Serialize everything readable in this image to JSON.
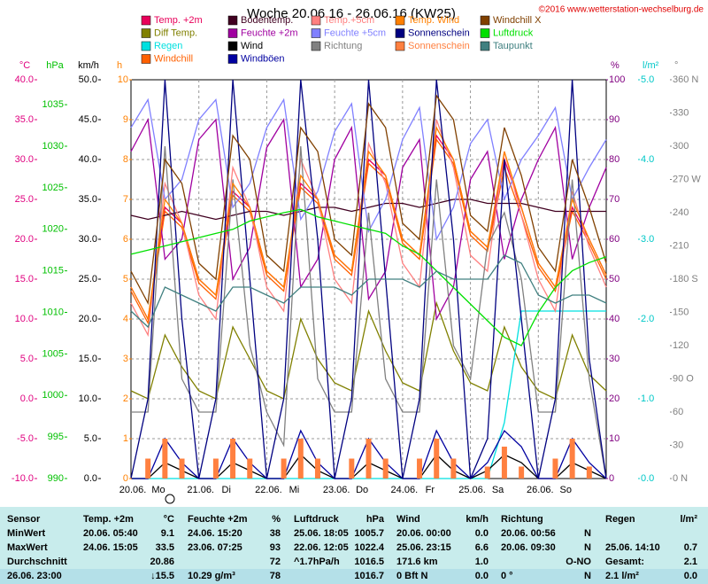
{
  "chart_data": {
    "type": "line",
    "title": "Woche 20.06.16 - 26.06.16 (KW25)",
    "copyright": "©2016 www.wetterstation-wechselburg.de",
    "xlim": [
      0,
      168
    ],
    "xticks": [
      {
        "value": 0,
        "label": "20.06."
      },
      {
        "value": 24,
        "label": "21.06."
      },
      {
        "value": 48,
        "label": "22.06."
      },
      {
        "value": 72,
        "label": "23.06."
      },
      {
        "value": 96,
        "label": "24.06."
      },
      {
        "value": 120,
        "label": "25.06."
      },
      {
        "value": 144,
        "label": "26.06."
      }
    ],
    "weekdays": [
      "Mo",
      "Di",
      "Mi",
      "Do",
      "Fr",
      "Sa",
      "So"
    ],
    "grid": true,
    "axes": {
      "temp": {
        "unit": "°C",
        "color": "#e0007f",
        "lim": [
          -10,
          40
        ],
        "ticks": [
          {
            "value": -10,
            "label": "-10.0"
          },
          {
            "value": -5,
            "label": "-5.0"
          },
          {
            "value": 0,
            "label": "0.0"
          },
          {
            "value": 5,
            "label": "5.0"
          },
          {
            "value": 10,
            "label": "10.0"
          },
          {
            "value": 15,
            "label": "15.0"
          },
          {
            "value": 20,
            "label": "20.0"
          },
          {
            "value": 25,
            "label": "25.0"
          },
          {
            "value": 30,
            "label": "30.0"
          },
          {
            "value": 35,
            "label": "35.0"
          },
          {
            "value": 40,
            "label": "40.0"
          }
        ]
      },
      "hpa": {
        "unit": "hPa",
        "color": "#00c000",
        "lim": [
          990,
          1038
        ],
        "ticks": [
          990,
          995,
          1000,
          1005,
          1010,
          1015,
          1020,
          1025,
          1030,
          1035
        ]
      },
      "kmh": {
        "unit": "km/h",
        "color": "#000000",
        "lim": [
          0,
          50
        ],
        "ticks": [
          {
            "value": 0,
            "label": "0.0"
          },
          {
            "value": 5,
            "label": "5.0"
          },
          {
            "value": 10,
            "label": "10.0"
          },
          {
            "value": 15,
            "label": "15.0"
          },
          {
            "value": 20,
            "label": "20.0"
          },
          {
            "value": 25,
            "label": "25.0"
          },
          {
            "value": 30,
            "label": "30.0"
          },
          {
            "value": 35,
            "label": "35.0"
          },
          {
            "value": 40,
            "label": "40.0"
          },
          {
            "value": 45,
            "label": "45.0"
          },
          {
            "value": 50,
            "label": "50.0"
          }
        ]
      },
      "h": {
        "unit": "h",
        "color": "#ff8000",
        "lim": [
          0,
          10
        ],
        "ticks": [
          0,
          1,
          2,
          3,
          4,
          5,
          6,
          7,
          8,
          9,
          10
        ]
      },
      "pct": {
        "unit": "%",
        "color": "#800080",
        "lim": [
          0,
          100
        ],
        "ticks": [
          0,
          10,
          20,
          30,
          40,
          50,
          60,
          70,
          80,
          90,
          100
        ]
      },
      "rain": {
        "unit": "l/m²",
        "color": "#00c8c8",
        "lim": [
          0,
          5
        ],
        "ticks": [
          {
            "value": 0,
            "label": "0.0"
          },
          {
            "value": 1,
            "label": "1.0"
          },
          {
            "value": 2,
            "label": "2.0"
          },
          {
            "value": 3,
            "label": "3.0"
          },
          {
            "value": 4,
            "label": "4.0"
          },
          {
            "value": 5,
            "label": "5.0"
          }
        ]
      },
      "deg": {
        "unit": "°",
        "color": "#808080",
        "lim": [
          0,
          360
        ],
        "ticks": [
          {
            "value": 0,
            "label": "0 N"
          },
          30,
          60,
          {
            "value": 90,
            "label": "90 O"
          },
          120,
          150,
          {
            "value": 180,
            "label": "180 S"
          },
          210,
          240,
          {
            "value": 270,
            "label": "270 W"
          },
          300,
          330,
          {
            "value": 360,
            "label": "360 N"
          }
        ]
      }
    },
    "x": [
      0,
      6,
      12,
      18,
      24,
      30,
      36,
      42,
      48,
      54,
      60,
      66,
      72,
      78,
      84,
      90,
      96,
      102,
      108,
      114,
      120,
      126,
      132,
      138,
      144,
      150,
      156,
      162,
      168
    ],
    "series": [
      {
        "name": "Temp. +2m",
        "color": "#e8005a",
        "axis": "temp",
        "values": [
          14,
          10,
          24,
          22,
          15,
          13,
          26,
          24,
          16,
          14,
          27,
          25,
          18,
          16,
          30,
          28,
          20,
          18,
          33,
          30,
          21,
          19,
          30,
          24,
          17,
          14,
          24,
          20,
          15.5
        ]
      },
      {
        "name": "Diff Temp.",
        "color": "#808000",
        "axis": "temp",
        "values": [
          1,
          0,
          8,
          4,
          1,
          0,
          9,
          5,
          1,
          0,
          10,
          5,
          2,
          1,
          11,
          6,
          2,
          1,
          12,
          6,
          2,
          1,
          9,
          4,
          1,
          0,
          8,
          3,
          1
        ]
      },
      {
        "name": "Regen",
        "color": "#00e0e0",
        "axis": "rain",
        "values": [
          0,
          0,
          0,
          0,
          0,
          0,
          0,
          0,
          0,
          0,
          0,
          0,
          0,
          0,
          0,
          0,
          0,
          0,
          0,
          0,
          0,
          0,
          0.7,
          2.1,
          2.1,
          2.1,
          2.1,
          2.1,
          2.1
        ]
      },
      {
        "name": "Windchill",
        "color": "#ff6000",
        "axis": "temp",
        "values": [
          13.5,
          9.5,
          23.5,
          21.5,
          14.5,
          12.5,
          25.5,
          23.5,
          15.5,
          13.5,
          26.5,
          24.5,
          17.5,
          15.5,
          29.5,
          27.5,
          19.5,
          17.5,
          32.5,
          29.5,
          20.5,
          18.5,
          29,
          23,
          16.5,
          13.5,
          23.5,
          19.5,
          15
        ]
      },
      {
        "name": "Bodentemp.",
        "color": "#400020",
        "axis": "temp",
        "values": [
          23,
          22.5,
          23,
          23.5,
          23,
          22.5,
          23,
          23.5,
          23.5,
          23,
          23.5,
          24,
          24,
          23.5,
          24,
          24.5,
          24.5,
          24,
          24.5,
          25,
          25,
          24.5,
          24.5,
          24.5,
          24,
          23.5,
          23.5,
          23.5,
          23.5
        ]
      },
      {
        "name": "Feuchte +2m",
        "color": "#a000a0",
        "axis": "pct",
        "values": [
          82,
          90,
          55,
          60,
          85,
          90,
          50,
          58,
          83,
          90,
          48,
          55,
          80,
          88,
          45,
          52,
          78,
          85,
          40,
          48,
          75,
          82,
          55,
          70,
          80,
          88,
          55,
          68,
          78
        ]
      },
      {
        "name": "Wind",
        "color": "#000000",
        "axis": "kmh",
        "values": [
          0,
          0,
          2,
          1,
          0,
          0,
          2,
          1,
          0,
          0,
          3,
          1,
          0,
          0,
          2,
          1,
          0,
          0,
          3,
          1,
          0,
          1,
          3,
          2,
          0,
          0,
          2,
          1,
          0
        ]
      },
      {
        "name": "Windböen",
        "color": "#0000a0",
        "axis": "kmh",
        "values": [
          0,
          0,
          5,
          2,
          0,
          0,
          5,
          2,
          0,
          0,
          6,
          2,
          0,
          0,
          5,
          2,
          0,
          0,
          6,
          2,
          0,
          2,
          6,
          4,
          0,
          0,
          5,
          2,
          0
        ]
      },
      {
        "name": "Temp.+5cm",
        "color": "#ff8080",
        "axis": "temp",
        "values": [
          12,
          8,
          27,
          22,
          13,
          10,
          29,
          24,
          14,
          11,
          30,
          25,
          15,
          12,
          32,
          27,
          17,
          14,
          35,
          29,
          18,
          16,
          31,
          23,
          15,
          11,
          26,
          19,
          14
        ]
      },
      {
        "name": "Feuchte +5cm",
        "color": "#8080ff",
        "axis": "pct",
        "values": [
          88,
          95,
          70,
          75,
          90,
          95,
          68,
          74,
          88,
          95,
          65,
          72,
          87,
          94,
          62,
          70,
          85,
          93,
          60,
          68,
          84,
          90,
          70,
          80,
          86,
          93,
          70,
          78,
          85
        ]
      },
      {
        "name": "Richtung",
        "color": "#808080",
        "axis": "deg",
        "values": [
          60,
          60,
          300,
          90,
          60,
          60,
          270,
          120,
          60,
          30,
          300,
          90,
          60,
          60,
          240,
          90,
          60,
          60,
          270,
          120,
          90,
          210,
          240,
          180,
          60,
          60,
          270,
          90,
          0
        ]
      },
      {
        "name": "Temp. Wind",
        "color": "#ff8000",
        "axis": "temp",
        "values": [
          14,
          10,
          25,
          22,
          15,
          13,
          27,
          24,
          16,
          14,
          28,
          25,
          18,
          16,
          31,
          28,
          20,
          18,
          34,
          30,
          21,
          19,
          31,
          24,
          17,
          14,
          25,
          20,
          15.5
        ]
      },
      {
        "name": "Sonnenschein",
        "color": "#000080",
        "axis": "pct",
        "values": [
          0,
          20,
          100,
          40,
          0,
          20,
          100,
          50,
          0,
          20,
          100,
          60,
          0,
          20,
          100,
          50,
          0,
          20,
          100,
          60,
          0,
          10,
          80,
          40,
          0,
          20,
          100,
          30,
          0
        ]
      },
      {
        "name": "Sonnenschein",
        "color": "#ff8040",
        "axis": "h",
        "style": "bar",
        "values": [
          0,
          0.5,
          1,
          0.5,
          0,
          0.5,
          1,
          0.5,
          0,
          0.5,
          1,
          0.5,
          0,
          0.5,
          1,
          0.5,
          0,
          0.5,
          1,
          0.5,
          0,
          0.3,
          0.8,
          0.3,
          0,
          0.5,
          1,
          0.3,
          0
        ]
      },
      {
        "name": "Windchill X",
        "color": "#804000",
        "axis": "temp",
        "values": [
          16,
          12,
          30,
          27,
          17,
          15,
          33,
          30,
          18,
          16,
          34,
          31,
          20,
          18,
          37,
          34,
          22,
          20,
          38,
          35,
          23,
          21,
          34,
          28,
          19,
          16,
          30,
          24,
          17
        ]
      },
      {
        "name": "Luftdruck",
        "color": "#00e000",
        "axis": "hpa",
        "values": [
          1017,
          1017.5,
          1018,
          1018.5,
          1019,
          1019.5,
          1020,
          1021,
          1021.5,
          1022,
          1022.4,
          1021.5,
          1021,
          1020.5,
          1020,
          1019.5,
          1018,
          1017,
          1015,
          1013,
          1011,
          1009,
          1007,
          1006,
          1010,
          1013,
          1015,
          1016,
          1016.7
        ]
      },
      {
        "name": "Taupunkt",
        "color": "#408080",
        "axis": "temp",
        "values": [
          11,
          9,
          14,
          13,
          12,
          11,
          14,
          14,
          13,
          12,
          14,
          14,
          14,
          13,
          15,
          15,
          15,
          14,
          16,
          15,
          15,
          15,
          18,
          17,
          13,
          12,
          13,
          13,
          12
        ]
      }
    ]
  },
  "table": {
    "header": [
      "Sensor",
      "Temp. +2m",
      "°C",
      "Feuchte +2m",
      "%",
      "Luftdruck",
      "hPa",
      "Wind",
      "km/h",
      "Richtung",
      null,
      "Regen",
      "l/m²"
    ],
    "rows": [
      [
        "MinWert",
        "20.06. 05:40",
        "9.1",
        "24.06. 15:20",
        "38",
        "25.06. 18:05",
        "1005.7",
        "20.06. 00:00",
        "0.0",
        "20.06. 00:56",
        "N",
        null,
        null
      ],
      [
        "MaxWert",
        "24.06. 15:05",
        "33.5",
        "23.06. 07:25",
        "93",
        "22.06. 12:05",
        "1022.4",
        "25.06. 23:15",
        "6.6",
        "20.06. 09:30",
        "N",
        "25.06. 14:10",
        "0.7"
      ],
      [
        "Durchschnitt",
        null,
        "20.86",
        null,
        "72",
        "^1.7hPa/h",
        "1016.5",
        "171.6 km",
        "1.0",
        null,
        "O-NO",
        "Gesamt:",
        "2.1"
      ],
      [
        "26.06. 23:00",
        null,
        "↓15.5",
        "10.29 g/m³",
        "78",
        null,
        "1016.7",
        "0 Bft N",
        "0.0",
        "0 °",
        "N",
        "2.1 l/m²",
        "0.0"
      ]
    ]
  }
}
